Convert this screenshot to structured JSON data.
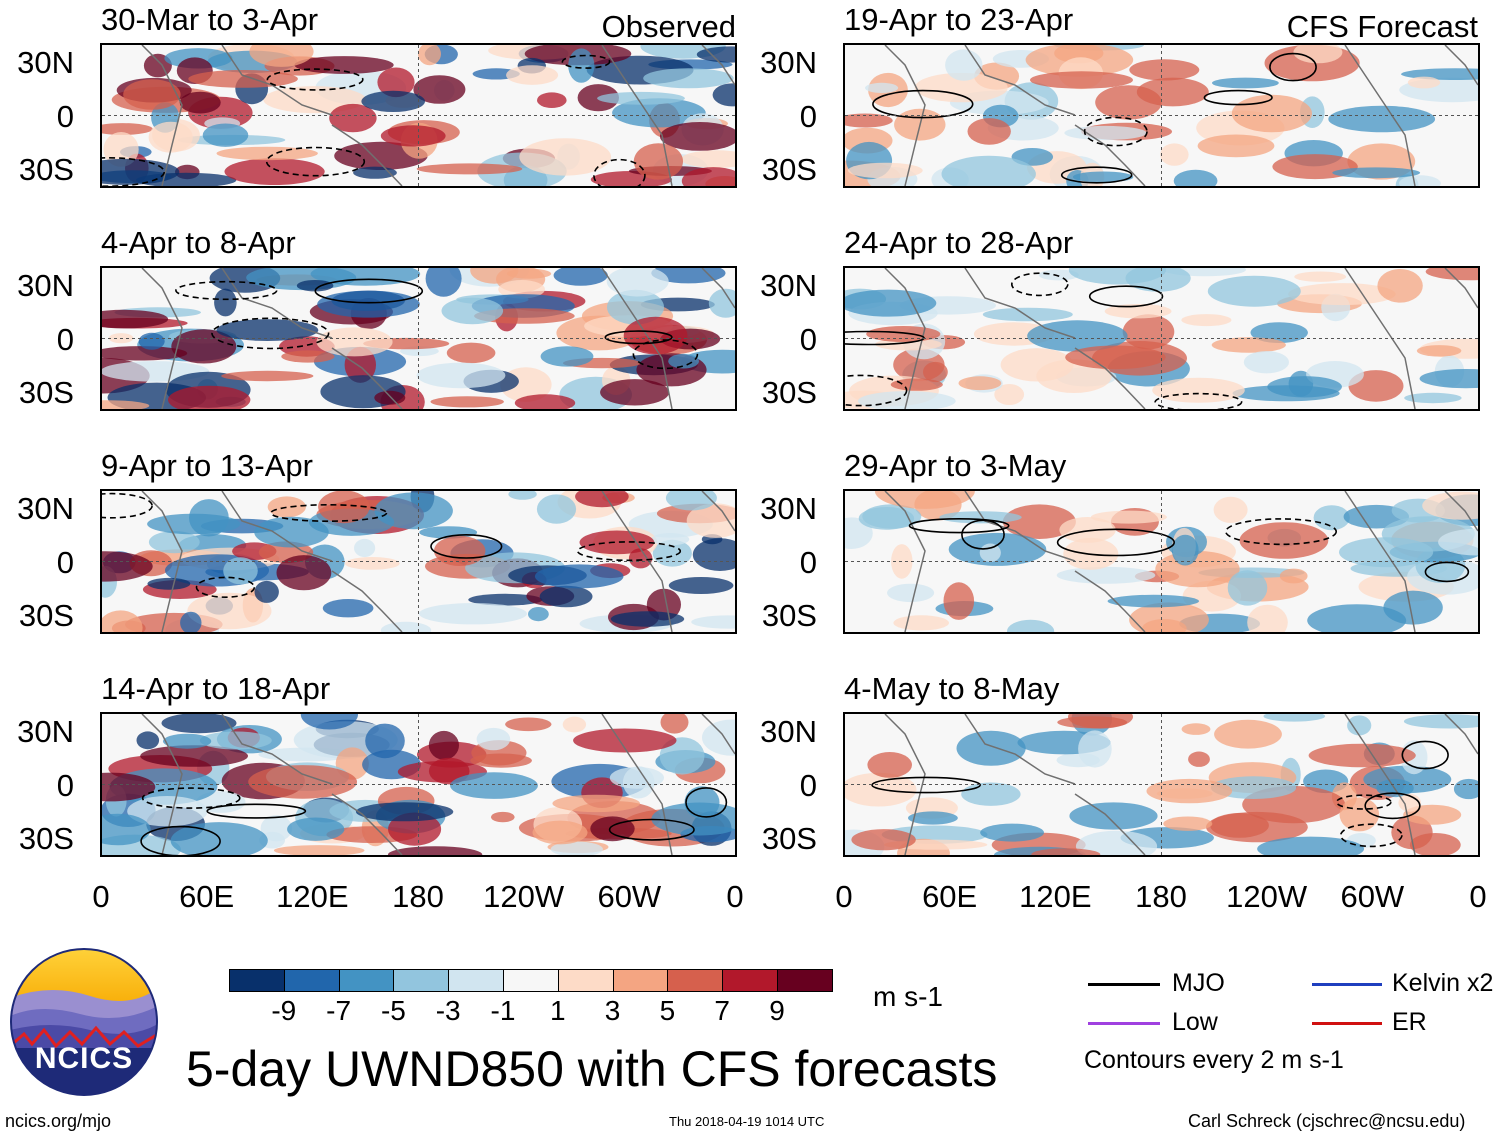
{
  "columns": {
    "left": "Observed",
    "right": "CFS Forecast"
  },
  "panels": {
    "left": [
      "30-Mar to 3-Apr",
      "4-Apr to 8-Apr",
      "9-Apr to 13-Apr",
      "14-Apr to 18-Apr"
    ],
    "right": [
      "19-Apr to 23-Apr",
      "24-Apr to 28-Apr",
      "29-Apr to 3-May",
      "4-May to 8-May"
    ]
  },
  "lat_labels": [
    "30N",
    "0",
    "30S"
  ],
  "lon_labels": [
    "0",
    "60E",
    "120E",
    "180",
    "120W",
    "60W",
    "0"
  ],
  "colorbar": {
    "colors": [
      "#08306b",
      "#2166ac",
      "#4393c3",
      "#92c5de",
      "#d1e5f0",
      "#f7f7f7",
      "#fddbc7",
      "#f4a582",
      "#d6604d",
      "#b2182b",
      "#67001f"
    ],
    "ticks": [
      "-9",
      "-7",
      "-5",
      "-3",
      "-1",
      "1",
      "3",
      "5",
      "7",
      "9"
    ],
    "units": "m s-1"
  },
  "legend": {
    "items": [
      {
        "label": "MJO",
        "color": "#000000"
      },
      {
        "label": "Kelvin x2",
        "color": "#1f3fbf"
      },
      {
        "label": "Low",
        "color": "#a040e0"
      },
      {
        "label": "ER",
        "color": "#d01010"
      }
    ],
    "note": "Contours every 2 m s-1"
  },
  "logo": {
    "text": "NCICS"
  },
  "title": "5-day UWND850 with CFS forecasts",
  "footer": {
    "url": "ncics.org/mjo",
    "timestamp": "Thu 2018-04-19 1014 UTC",
    "author": "Carl Schreck (cjschrec@ncsu.edu)"
  }
}
